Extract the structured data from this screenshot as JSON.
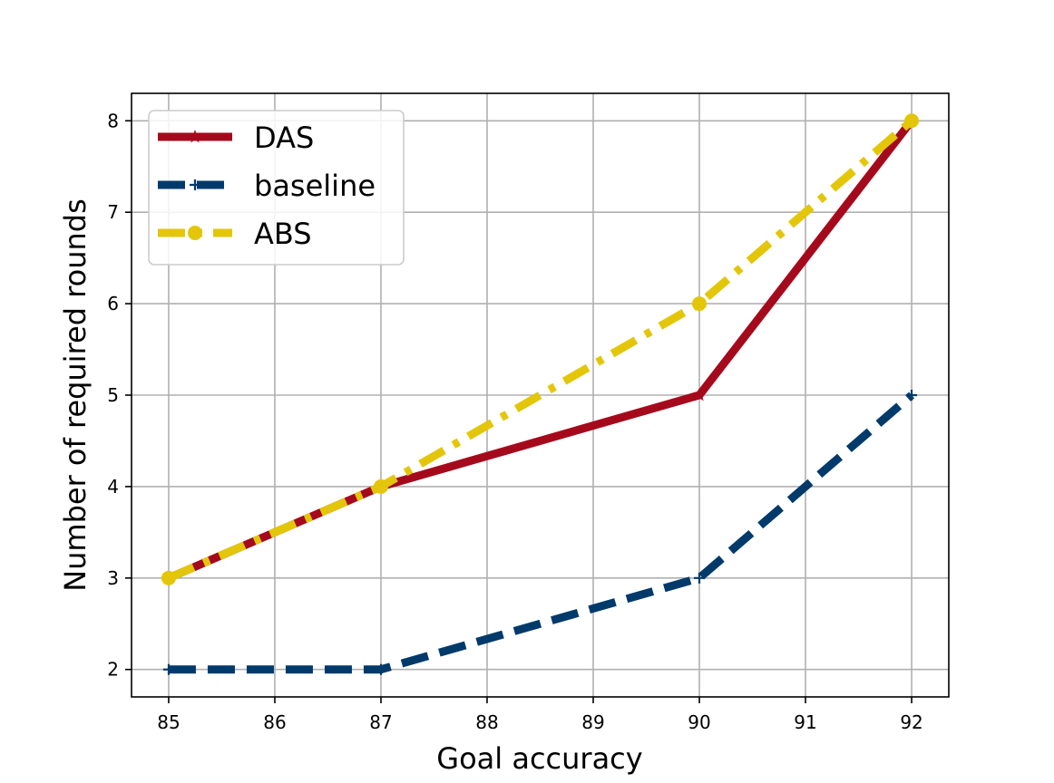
{
  "chart_data": {
    "type": "line",
    "title": "",
    "xlabel": "Goal accuracy",
    "ylabel": "Number of required rounds",
    "xlim": [
      84.65,
      92.35
    ],
    "ylim": [
      1.7,
      8.3
    ],
    "x_ticks": [
      85,
      86,
      87,
      88,
      89,
      90,
      91,
      92
    ],
    "y_ticks": [
      2,
      3,
      4,
      5,
      6,
      7,
      8
    ],
    "grid": true,
    "legend_position": "top-left",
    "series": [
      {
        "name": "DAS",
        "x": [
          85,
          87,
          90,
          92
        ],
        "y": [
          3,
          4,
          5,
          8
        ],
        "color": "#a50a1c",
        "line_style": "solid",
        "marker": "star"
      },
      {
        "name": "baseline",
        "x": [
          85,
          87,
          90,
          92
        ],
        "y": [
          2,
          2,
          3,
          5
        ],
        "color": "#003a6b",
        "line_style": "dashed",
        "marker": "plus"
      },
      {
        "name": "ABS",
        "x": [
          85,
          87,
          90,
          92
        ],
        "y": [
          3,
          4,
          6,
          8
        ],
        "color": "#e3c60a",
        "line_style": "dashdot",
        "marker": "circle"
      }
    ]
  }
}
